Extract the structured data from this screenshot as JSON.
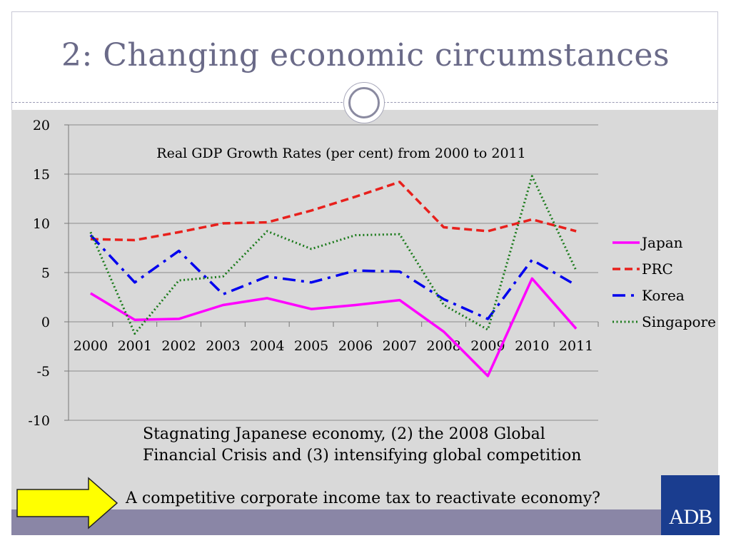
{
  "slide": {
    "title": "2: Changing economic circumstances",
    "caption_line1": "Stagnating Japanese economy, (2) the 2008 Global",
    "caption_line2": "Financial Crisis and (3) intensifying global competition",
    "question": "A competitive corporate income tax to reactivate economy?",
    "logo_text": "ADB"
  },
  "colors": {
    "title": "#6a6a88",
    "content_band": "#d9d9d9",
    "footer_band": "#8a86a6",
    "arrow_fill": "#ffff00",
    "logo_bg": "#1a3d8f"
  },
  "chart_data": {
    "type": "line",
    "title": "Real GDP Growth Rates (per cent) from 2000 to 2011",
    "categories": [
      "2000",
      "2001",
      "2002",
      "2003",
      "2004",
      "2005",
      "2006",
      "2007",
      "2008",
      "2009",
      "2010",
      "2011"
    ],
    "ylim": [
      -10,
      20
    ],
    "yticks": [
      -10,
      -5,
      0,
      5,
      10,
      15,
      20
    ],
    "ytick_labels": [
      "-10",
      "-5",
      "0",
      "5",
      "10",
      "15",
      "20"
    ],
    "grid": true,
    "legend_position": "right",
    "series": [
      {
        "name": "Japan",
        "color": "#ff00ff",
        "dash": "solid",
        "values": [
          2.9,
          0.2,
          0.3,
          1.7,
          2.4,
          1.3,
          1.7,
          2.2,
          -1.0,
          -5.5,
          4.4,
          -0.7
        ]
      },
      {
        "name": "PRC",
        "color": "#e8201c",
        "dash": "dashed",
        "values": [
          8.4,
          8.3,
          9.1,
          10.0,
          10.1,
          11.3,
          12.7,
          14.2,
          9.6,
          9.2,
          10.4,
          9.2
        ]
      },
      {
        "name": "Korea",
        "color": "#0000ee",
        "dash": "dashdot",
        "values": [
          8.8,
          4.0,
          7.2,
          2.8,
          4.6,
          4.0,
          5.2,
          5.1,
          2.3,
          0.3,
          6.3,
          3.7
        ]
      },
      {
        "name": "Singapore",
        "color": "#1a7a1a",
        "dash": "dotted",
        "values": [
          9.1,
          -1.2,
          4.2,
          4.6,
          9.2,
          7.4,
          8.8,
          8.9,
          1.7,
          -0.8,
          14.8,
          5.2
        ]
      }
    ]
  }
}
